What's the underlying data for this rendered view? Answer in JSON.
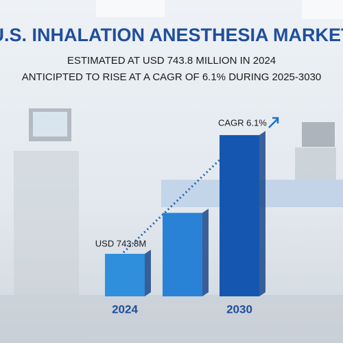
{
  "chart_data": {
    "type": "bar",
    "title": "U.S. INHALATION ANESTHESIA MARKET",
    "subtitle": [
      "ESTIMATED AT USD 743.8 MILLION IN 2024",
      "ANTICIPTED TO RISE AT A CAGR OF 6.1% DURING 2025-3030"
    ],
    "categories": [
      "2024",
      null,
      "2030"
    ],
    "values": [
      743.8,
      1460,
      2820
    ],
    "value_labels": [
      "USD 743.8M",
      null,
      null
    ],
    "colors": [
      "#2f8fdc",
      "#2a82d6",
      "#1557b0"
    ],
    "annotation": "CAGR 6.1%"
  }
}
